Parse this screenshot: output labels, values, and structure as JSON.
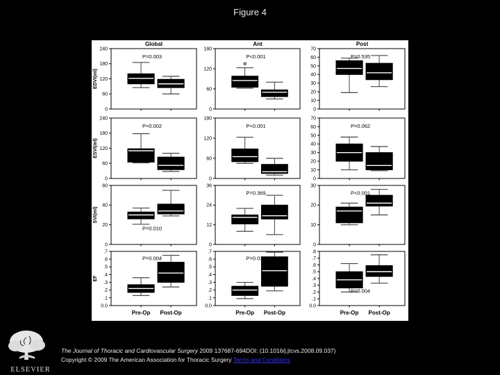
{
  "slide": {
    "title": "Figure 4",
    "background": "#000000"
  },
  "figure": {
    "colors": {
      "panel": "#ffffff",
      "frame": "#000000",
      "box": "#000000",
      "median": "#ffffff",
      "whisker": "#444444",
      "text": "#000000"
    }
  },
  "chart_data": {
    "type": "boxplot",
    "layout_note": "grid of 12 box plots, 3 columns x 4 rows, pre/post pairs",
    "columns": [
      "Global",
      "Ant",
      "Post"
    ],
    "row_ylabels": [
      "EDVI(ml)",
      "ESVI(ml)",
      "SVI(ml)",
      "EF"
    ],
    "x_categories": [
      "Pre-Op",
      "Post-Op"
    ],
    "plots": [
      {
        "col": 0,
        "row": 0,
        "ylim": [
          0,
          240
        ],
        "tick_values": [
          0,
          60,
          120,
          180,
          240
        ],
        "tick_labels": [
          "0",
          "60",
          "120",
          "180",
          "240"
        ],
        "p": "P=0.003",
        "p_pos": "top",
        "pre": {
          "lo": 85,
          "q1": 100,
          "med": 122,
          "q3": 140,
          "hi": 185
        },
        "post": {
          "lo": 60,
          "q1": 85,
          "med": 100,
          "q3": 118,
          "hi": 130
        }
      },
      {
        "col": 1,
        "row": 0,
        "ylim": [
          0,
          180
        ],
        "tick_values": [
          0,
          60,
          120,
          180
        ],
        "tick_labels": [
          "0",
          "60",
          "120",
          "180"
        ],
        "p": "P<0.001",
        "p_pos": "top",
        "pre": {
          "lo": 62,
          "q1": 65,
          "med": 85,
          "q3": 98,
          "hi": 123
        },
        "post": {
          "lo": 30,
          "q1": 37,
          "med": 50,
          "q3": 57,
          "hi": 80
        },
        "outliers": [
          {
            "box": "pre",
            "v": 135
          }
        ]
      },
      {
        "col": 2,
        "row": 0,
        "ylim": [
          0,
          70
        ],
        "tick_values": [
          0,
          10,
          20,
          30,
          40,
          50,
          60,
          70
        ],
        "tick_labels": [
          "0",
          "10",
          "20",
          "30",
          "40",
          "50",
          "60",
          "70"
        ],
        "p": "P=0.535",
        "p_pos": "top",
        "pre": {
          "lo": 19,
          "q1": 40,
          "med": 47,
          "q3": 56,
          "hi": 59
        },
        "post": {
          "lo": 26,
          "q1": 34,
          "med": 42,
          "q3": 53,
          "hi": 62
        }
      },
      {
        "col": 0,
        "row": 1,
        "ylim": [
          0,
          240
        ],
        "tick_values": [
          0,
          60,
          120,
          180,
          240
        ],
        "tick_labels": [
          "0",
          "60",
          "120",
          "180",
          "240"
        ],
        "p": "P=0.002",
        "p_pos": "top",
        "pre": {
          "lo": 62,
          "q1": 65,
          "med": 110,
          "q3": 118,
          "hi": 178
        },
        "post": {
          "lo": 28,
          "q1": 35,
          "med": 52,
          "q3": 85,
          "hi": 100
        }
      },
      {
        "col": 1,
        "row": 1,
        "ylim": [
          0,
          180
        ],
        "tick_values": [
          0,
          60,
          120,
          180
        ],
        "tick_labels": [
          "0",
          "60",
          "120",
          "180"
        ],
        "p": "P<0.001",
        "p_pos": "top",
        "pre": {
          "lo": 45,
          "q1": 50,
          "med": 65,
          "q3": 88,
          "hi": 123
        },
        "post": {
          "lo": 10,
          "q1": 15,
          "med": 20,
          "q3": 42,
          "hi": 60
        }
      },
      {
        "col": 2,
        "row": 1,
        "ylim": [
          0,
          70
        ],
        "tick_values": [
          0,
          10,
          20,
          30,
          40,
          50,
          60,
          70
        ],
        "tick_labels": [
          "0",
          "10",
          "20",
          "30",
          "40",
          "50",
          "60",
          "70"
        ],
        "p": "P=0.062",
        "p_pos": "top",
        "pre": {
          "lo": 10,
          "q1": 20,
          "med": 30,
          "q3": 40,
          "hi": 48
        },
        "post": {
          "lo": 9,
          "q1": 10,
          "med": 15,
          "q3": 30,
          "hi": 37
        }
      },
      {
        "col": 0,
        "row": 2,
        "ylim": [
          0,
          60
        ],
        "tick_values": [
          0,
          20,
          40,
          60
        ],
        "tick_labels": [
          "0",
          "20",
          "40",
          "60"
        ],
        "p": "P=0.010",
        "p_pos": "bottom",
        "pre": {
          "lo": 20.5,
          "q1": 26,
          "med": 30,
          "q3": 33,
          "hi": 37
        },
        "post": {
          "lo": 29,
          "q1": 31,
          "med": 34,
          "q3": 41,
          "hi": 55
        }
      },
      {
        "col": 1,
        "row": 2,
        "ylim": [
          0,
          36
        ],
        "tick_values": [
          0,
          12,
          24,
          36
        ],
        "tick_labels": [
          "0",
          "12",
          "24",
          "36"
        ],
        "p": "P=0.369",
        "p_pos": "top",
        "pre": {
          "lo": 8,
          "q1": 12.5,
          "med": 16.5,
          "q3": 18,
          "hi": 22
        },
        "post": {
          "lo": 6,
          "q1": 15.5,
          "med": 17.5,
          "q3": 24,
          "hi": 30
        }
      },
      {
        "col": 2,
        "row": 2,
        "ylim": [
          0,
          30
        ],
        "tick_values": [
          0,
          10,
          20,
          30
        ],
        "tick_labels": [
          "0",
          "10",
          "20",
          "30"
        ],
        "p": "P<0.001",
        "p_pos": "top",
        "pre": {
          "lo": 10,
          "q1": 11,
          "med": 17,
          "q3": 19,
          "hi": 21
        },
        "post": {
          "lo": 15,
          "q1": 19.5,
          "med": 21,
          "q3": 25,
          "hi": 28
        }
      },
      {
        "col": 0,
        "row": 3,
        "ylim": [
          0,
          0.7
        ],
        "tick_values": [
          0,
          0.1,
          0.2,
          0.3,
          0.4,
          0.5,
          0.6,
          0.7
        ],
        "tick_labels": [
          "0.0",
          ".1",
          ".2",
          ".3",
          ".4",
          ".5",
          ".6",
          ".7"
        ],
        "p": "P=0.004",
        "p_pos": "top",
        "pre": {
          "lo": 0.13,
          "q1": 0.17,
          "med": 0.22,
          "q3": 0.27,
          "hi": 0.36
        },
        "post": {
          "lo": 0.24,
          "q1": 0.3,
          "med": 0.42,
          "q3": 0.56,
          "hi": 0.65
        }
      },
      {
        "col": 1,
        "row": 3,
        "ylim": [
          0,
          0.7
        ],
        "tick_values": [
          0,
          0.1,
          0.2,
          0.3,
          0.4,
          0.5,
          0.6,
          0.7
        ],
        "tick_labels": [
          "0.0",
          ".1",
          ".2",
          ".3",
          ".4",
          ".5",
          ".6",
          ".7"
        ],
        "p": "P=0.033",
        "p_pos": "top",
        "pre": {
          "lo": 0.09,
          "q1": 0.13,
          "med": 0.2,
          "q3": 0.25,
          "hi": 0.3
        },
        "post": {
          "lo": 0.19,
          "q1": 0.25,
          "med": 0.45,
          "q3": 0.63,
          "hi": 0.69
        }
      },
      {
        "col": 2,
        "row": 3,
        "ylim": [
          0,
          0.8
        ],
        "tick_values": [
          0,
          0.1,
          0.2,
          0.3,
          0.4,
          0.5,
          0.6,
          0.7,
          0.8
        ],
        "tick_labels": [
          "0.0",
          ".1",
          ".2",
          ".3",
          ".4",
          ".5",
          ".6",
          ".7",
          ".8"
        ],
        "p": "P=0.004",
        "p_pos": "bottom",
        "pre": {
          "lo": 0.2,
          "q1": 0.26,
          "med": 0.38,
          "q3": 0.5,
          "hi": 0.62
        },
        "post": {
          "lo": 0.33,
          "q1": 0.43,
          "med": 0.5,
          "q3": 0.59,
          "hi": 0.75
        }
      }
    ]
  },
  "footer": {
    "logo_text": "ELSEVIER",
    "citation_italic": "The Journal of Thoracic and Cardiovascular Surgery",
    "citation_rest": " 2009 137687-694DOI: (10.1016/j.jtcvs.2008.09.037)",
    "copyright": "Copyright © 2009 The American Association for Thoracic Surgery ",
    "terms_link": "Terms and Conditions",
    "link_color": "#3333ee"
  }
}
